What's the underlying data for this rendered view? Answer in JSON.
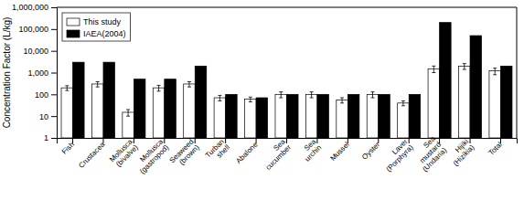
{
  "chart_data": {
    "type": "bar",
    "categories": [
      "Fish",
      "Crustacea",
      "Mollusca\n(bivalve)",
      "Mollusca\n(gastropod)",
      "Seaweed\n(brown)",
      "Turban\nshell",
      "Abalone",
      "Sea\ncucumber",
      "Sea\nurchin",
      "Mussel",
      "Oyster",
      "Laver\n(Porphyra)",
      "Sea\nmustard\n(Undaria)",
      "Hijiki\n(Hizikia)",
      "Total"
    ],
    "series": [
      {
        "name": "This study",
        "color": "white",
        "values": [
          200,
          300,
          15,
          200,
          300,
          70,
          60,
          100,
          100,
          55,
          100,
          40,
          1500,
          2000,
          1200
        ],
        "errors": [
          50,
          80,
          5,
          60,
          80,
          20,
          15,
          30,
          30,
          15,
          30,
          10,
          500,
          600,
          400
        ]
      },
      {
        "name": "IAEA(2004)",
        "color": "black",
        "values": [
          3000,
          3000,
          500,
          500,
          2000,
          100,
          70,
          100,
          100,
          100,
          100,
          100,
          200000,
          50000,
          2000
        ]
      }
    ],
    "ylabel": "Concentration Factor (L/kg)",
    "log": "y",
    "ylim": [
      1,
      1000000
    ],
    "yticks": [
      1,
      10,
      100,
      {
        "value": 1000,
        "label": "1,000"
      },
      {
        "value": 10000,
        "label": "10,000"
      },
      {
        "value": 100000,
        "label": "100,000"
      },
      {
        "value": 1000000,
        "label": "1,000,000"
      }
    ],
    "legend": "upper-left",
    "grid": false
  }
}
